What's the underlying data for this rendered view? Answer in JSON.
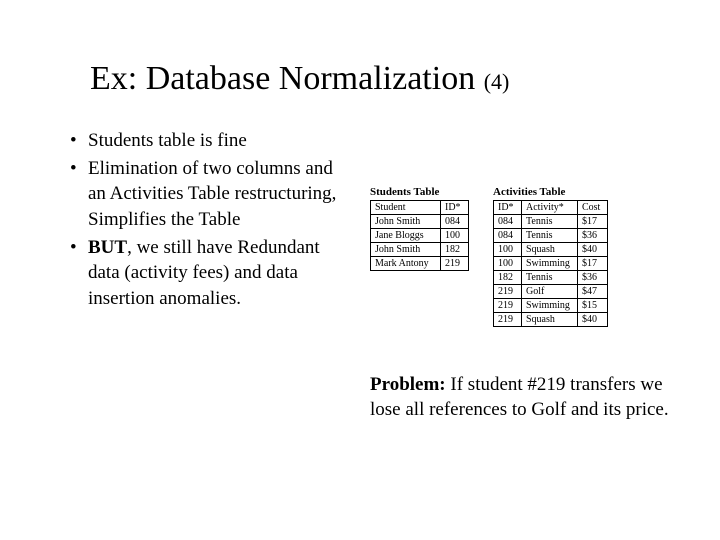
{
  "title_main": "Ex: Database Normalization ",
  "title_sub": "(4)",
  "bullets": [
    {
      "text": "Students table is fine"
    },
    {
      "text": "Elimination of two columns  and an Activities Table restructuring, Simplifies the Table"
    },
    {
      "bold": "BUT",
      "text": ", we still have Redundant data (activity fees) and data insertion anomalies."
    }
  ],
  "students_table": {
    "title": "Students Table",
    "columns": [
      "Student",
      "ID*"
    ],
    "rows": [
      [
        "John Smith",
        "084"
      ],
      [
        "Jane Bloggs",
        "100"
      ],
      [
        "John Smith",
        "182"
      ],
      [
        "Mark Antony",
        "219"
      ]
    ],
    "col_widths": [
      "70px",
      "28px"
    ]
  },
  "activities_table": {
    "title": "Activities Table",
    "columns": [
      "ID*",
      "Activity*",
      "Cost"
    ],
    "rows": [
      [
        "084",
        "Tennis",
        "$17"
      ],
      [
        "084",
        "Tennis",
        "$36"
      ],
      [
        "100",
        "Squash",
        "$40"
      ],
      [
        "100",
        "Swimming",
        "$17"
      ],
      [
        "182",
        "Tennis",
        "$36"
      ],
      [
        "219",
        "Golf",
        "$47"
      ],
      [
        "219",
        "Swimming",
        "$15"
      ],
      [
        "219",
        "Squash",
        "$40"
      ]
    ],
    "col_widths": [
      "28px",
      "56px",
      "30px"
    ]
  },
  "problem_bold": "Problem:",
  "problem_text": " If student #219 transfers we lose all references to Golf and its price.",
  "colors": {
    "background": "#ffffff",
    "text": "#000000",
    "border": "#000000"
  },
  "fonts": {
    "title_size": 34,
    "body_size": 19,
    "table_size": 10
  }
}
